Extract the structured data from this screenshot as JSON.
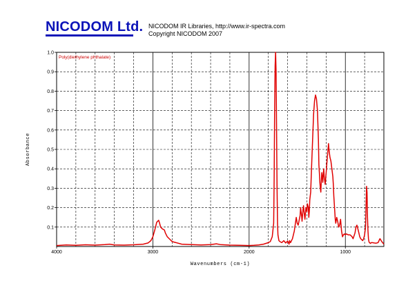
{
  "header": {
    "brand": "NICODOM Ltd.",
    "line1": "NICODOM IR Libraries, http://www.ir-spectra.com",
    "line2": "Copyright NICODOM 2007"
  },
  "colors": {
    "brand": "#0b13b8",
    "spectrum": "#e00000",
    "grid": "#000000"
  },
  "chart_data": {
    "type": "line",
    "title": "",
    "legend": "Poly(diethylene phthalate)",
    "legend_position": "top-left",
    "xlabel": "Wavenumbers (cm-1)",
    "ylabel": "Absorbance",
    "x_reversed": true,
    "xlim": [
      4000,
      600
    ],
    "ylim": [
      0,
      1.0
    ],
    "grid": true,
    "x_ticks": [
      4000,
      3000,
      2000,
      1000
    ],
    "x_tick_labels": [
      "4000",
      "3000",
      "2000",
      "1000"
    ],
    "y_ticks": [
      0.1,
      0.2,
      0.3,
      0.4,
      0.5,
      0.6,
      0.7,
      0.8,
      0.9,
      1.0
    ],
    "y_tick_labels": [
      "0.1",
      "0.2",
      "0.3",
      "0.4",
      "0.5",
      "0.6",
      "0.7",
      "0.8",
      "0.9",
      "1.0"
    ],
    "series": [
      {
        "x": [
          4000,
          3900,
          3800,
          3700,
          3600,
          3500,
          3450,
          3400,
          3300,
          3200,
          3100,
          3050,
          3020,
          3000,
          2980,
          2960,
          2940,
          2930,
          2920,
          2900,
          2880,
          2870,
          2850,
          2800,
          2700,
          2600,
          2500,
          2400,
          2340,
          2300,
          2200,
          2100,
          2000,
          1950,
          1900,
          1850,
          1800,
          1780,
          1760,
          1745,
          1740,
          1735,
          1730,
          1725,
          1720,
          1715,
          1710,
          1705,
          1700,
          1690,
          1680,
          1660,
          1640,
          1620,
          1600,
          1585,
          1580,
          1570,
          1550,
          1530,
          1510,
          1500,
          1490,
          1470,
          1465,
          1455,
          1450,
          1440,
          1435,
          1425,
          1420,
          1410,
          1400,
          1395,
          1385,
          1380,
          1375,
          1370,
          1360,
          1355,
          1350,
          1340,
          1330,
          1320,
          1310,
          1300,
          1290,
          1280,
          1275,
          1270,
          1265,
          1260,
          1255,
          1250,
          1245,
          1240,
          1235,
          1230,
          1225,
          1220,
          1210,
          1200,
          1190,
          1180,
          1175,
          1170,
          1160,
          1150,
          1140,
          1130,
          1125,
          1120,
          1115,
          1110,
          1105,
          1100,
          1090,
          1080,
          1070,
          1060,
          1050,
          1040,
          1030,
          1020,
          1010,
          1000,
          990,
          970,
          950,
          930,
          920,
          910,
          900,
          890,
          880,
          870,
          860,
          850,
          840,
          830,
          820,
          810,
          800,
          795,
          790,
          785,
          780,
          775,
          770,
          765,
          760,
          755,
          750,
          745,
          740,
          730,
          720,
          700,
          680,
          660,
          650,
          645,
          640,
          630,
          620,
          610,
          600
        ],
        "y": [
          0.005,
          0.008,
          0.006,
          0.009,
          0.007,
          0.01,
          0.012,
          0.008,
          0.007,
          0.009,
          0.012,
          0.018,
          0.03,
          0.05,
          0.085,
          0.125,
          0.135,
          0.12,
          0.1,
          0.09,
          0.085,
          0.07,
          0.05,
          0.025,
          0.012,
          0.01,
          0.008,
          0.01,
          0.014,
          0.01,
          0.007,
          0.006,
          0.005,
          0.006,
          0.008,
          0.012,
          0.02,
          0.025,
          0.05,
          0.12,
          0.35,
          0.7,
          0.93,
          1.0,
          0.9,
          0.6,
          0.3,
          0.12,
          0.06,
          0.03,
          0.025,
          0.02,
          0.03,
          0.018,
          0.028,
          0.012,
          0.03,
          0.02,
          0.04,
          0.08,
          0.15,
          0.12,
          0.11,
          0.16,
          0.2,
          0.16,
          0.13,
          0.19,
          0.21,
          0.16,
          0.14,
          0.2,
          0.18,
          0.22,
          0.2,
          0.15,
          0.18,
          0.24,
          0.28,
          0.35,
          0.42,
          0.55,
          0.68,
          0.75,
          0.78,
          0.76,
          0.7,
          0.55,
          0.42,
          0.38,
          0.33,
          0.3,
          0.28,
          0.34,
          0.38,
          0.36,
          0.33,
          0.37,
          0.4,
          0.36,
          0.32,
          0.38,
          0.44,
          0.5,
          0.53,
          0.5,
          0.46,
          0.44,
          0.4,
          0.36,
          0.32,
          0.26,
          0.22,
          0.18,
          0.14,
          0.12,
          0.15,
          0.13,
          0.1,
          0.11,
          0.14,
          0.08,
          0.05,
          0.06,
          0.065,
          0.06,
          0.065,
          0.06,
          0.06,
          0.05,
          0.04,
          0.055,
          0.07,
          0.1,
          0.11,
          0.09,
          0.07,
          0.05,
          0.04,
          0.035,
          0.03,
          0.04,
          0.06,
          0.08,
          0.1,
          0.2,
          0.31,
          0.28,
          0.15,
          0.08,
          0.04,
          0.025,
          0.02,
          0.018,
          0.016,
          0.02,
          0.02,
          0.018,
          0.017,
          0.02,
          0.03,
          0.036,
          0.04,
          0.032,
          0.024,
          0.018,
          0.012
        ]
      }
    ]
  }
}
